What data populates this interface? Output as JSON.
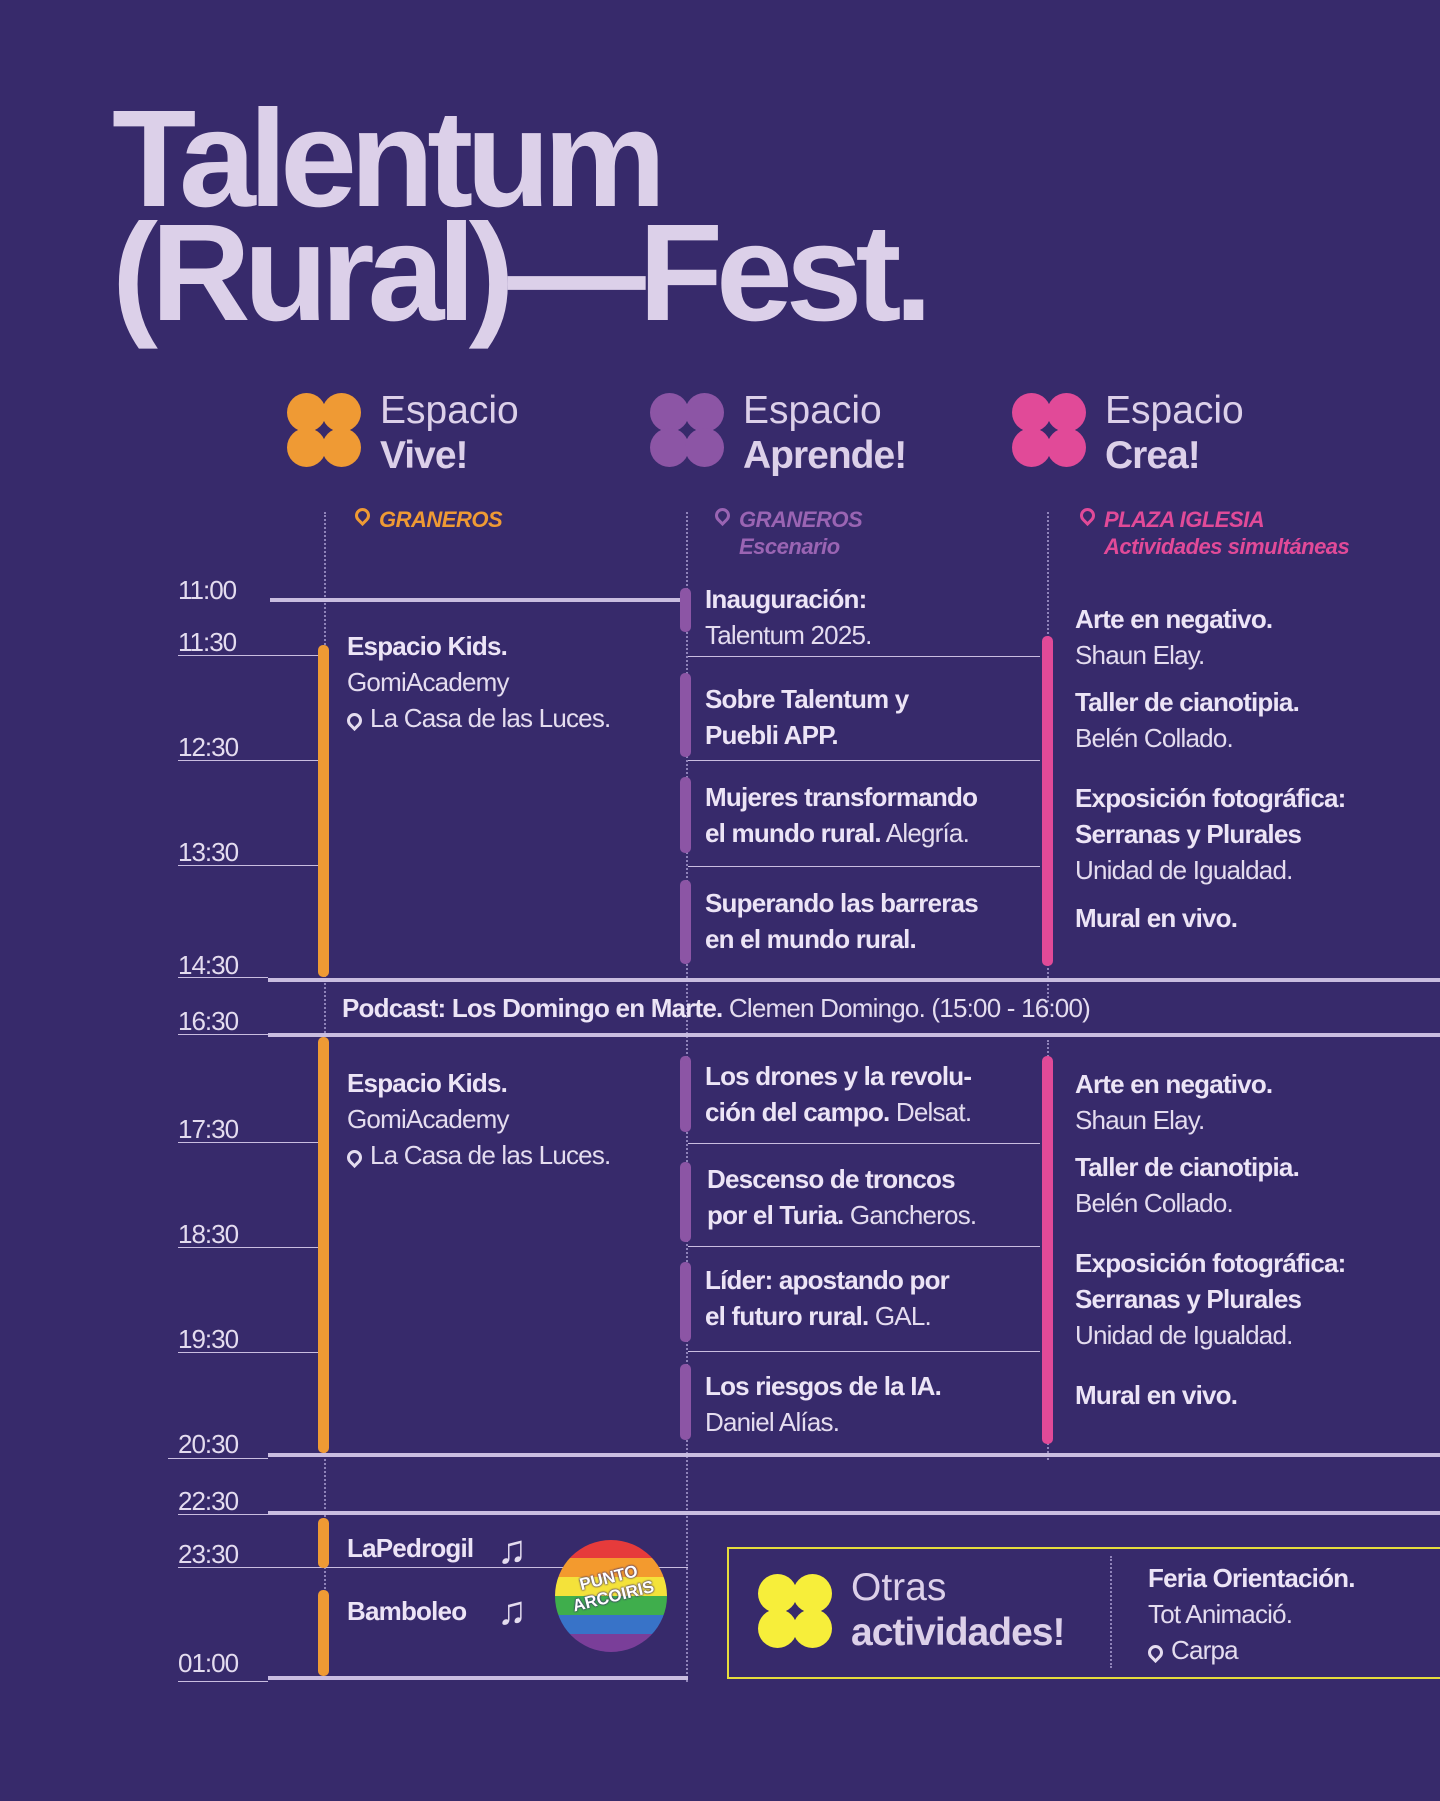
{
  "title": {
    "line1": "Talentum",
    "line2": "(Rural)—Fest."
  },
  "spaces": [
    {
      "word": "Espacio",
      "name": "Vive!",
      "color": "#ef9a34",
      "location": "GRANEROS",
      "sublocation": ""
    },
    {
      "word": "Espacio",
      "name": "Aprende!",
      "color": "#8c55a5",
      "location": "GRANEROS",
      "sublocation": "Escenario"
    },
    {
      "word": "Espacio",
      "name": "Crea!",
      "color": "#e14a98",
      "location": "PLAZA IGLESIA",
      "sublocation": "Actividades simultáneas"
    }
  ],
  "times": [
    "11:00",
    "11:30",
    "12:30",
    "13:30",
    "14:30",
    "16:30",
    "17:30",
    "18:30",
    "19:30",
    "20:30",
    "22:30",
    "23:30",
    "01:00"
  ],
  "vive": {
    "morning": {
      "title": "Espacio Kids.",
      "org": "GomiAcademy",
      "place": "La Casa de las Luces."
    },
    "afternoon": {
      "title": "Espacio Kids.",
      "org": "GomiAcademy",
      "place": "La Casa de las Luces."
    },
    "night": [
      {
        "title": "LaPedrogil",
        "icon": "music-note-icon"
      },
      {
        "title": "Bamboleo",
        "icon": "music-note-icon"
      }
    ]
  },
  "aprende_morning": [
    {
      "bold1": "Inauguración:",
      "light1": "",
      "bold2": "",
      "light2": "Talentum 2025."
    },
    {
      "bold1": "Sobre Talentum y",
      "light1": "",
      "bold2": "Puebli APP.",
      "light2": ""
    },
    {
      "bold1": "Mujeres transformando",
      "light1": "",
      "bold2": "el mundo rural.",
      "light2": " Alegría."
    },
    {
      "bold1": "Superando las barreras",
      "light1": "",
      "bold2": "en el mundo rural.",
      "light2": ""
    }
  ],
  "aprende_afternoon": [
    {
      "bold1": "Los drones y la revolu-",
      "light1": "",
      "bold2": "ción del campo.",
      "light2": " Delsat."
    },
    {
      "bold1": "Descenso de troncos",
      "light1": "",
      "bold2": "por el Turia.",
      "light2": " Gancheros."
    },
    {
      "bold1": "Líder: apostando por",
      "light1": "",
      "bold2": "el futuro rural.",
      "light2": " GAL."
    },
    {
      "bold1": "Los riesgos de la IA.",
      "light1": "",
      "bold2": "",
      "light2": "Daniel Alías."
    }
  ],
  "crea": [
    {
      "bold": "Arte en negativo.",
      "lines": [
        "Shaun Elay."
      ]
    },
    {
      "bold": "Taller de cianotipia.",
      "lines": [
        "Belén Collado."
      ]
    },
    {
      "bold": "Exposición fotográfica:",
      "bold2": "Serranas y Plurales",
      "lines": [
        "Unidad de Igualdad."
      ]
    },
    {
      "bold": "Mural en vivo.",
      "lines": []
    }
  ],
  "podcast": {
    "bold": "Podcast: Los Domingo en Marte.",
    "light": " Clemen Domingo. (15:00 - 16:00)"
  },
  "badge": {
    "line1": "PUNTO",
    "line2": "ARCOIRIS"
  },
  "otras": {
    "word": "Otras",
    "name": "actividades!",
    "color": "#f7ee3a",
    "event": "Feria Orientación.",
    "org": "Tot Animació.",
    "place": "Carpa"
  }
}
